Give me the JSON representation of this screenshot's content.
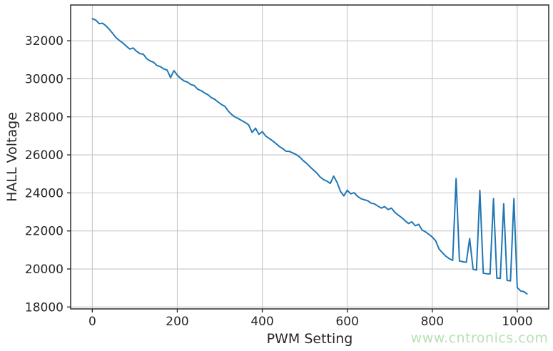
{
  "figure": {
    "background": "#ffffff"
  },
  "watermark": {
    "text": "www.cntronics.com",
    "color": "#b6e2b4"
  },
  "chart_data": {
    "type": "line",
    "title": "",
    "xlabel": "PWM Setting",
    "ylabel": "HALL Voltage",
    "xlim": [
      -51,
      1074
    ],
    "ylim": [
      17900,
      33880
    ],
    "xticks": [
      0,
      200,
      400,
      600,
      800,
      1000
    ],
    "yticks": [
      18000,
      20000,
      22000,
      24000,
      26000,
      28000,
      30000,
      32000
    ],
    "grid": true,
    "legend": "none",
    "line_color": "#1f77b4",
    "grid_color": "#c6c6c6",
    "spine_color": "#2b2b2b",
    "text_color": "#262626",
    "series": [
      {
        "name": "HALL Voltage",
        "x": [
          0,
          8,
          16,
          24,
          32,
          40,
          48,
          56,
          64,
          72,
          80,
          88,
          96,
          104,
          112,
          120,
          128,
          136,
          144,
          152,
          160,
          168,
          176,
          184,
          192,
          200,
          208,
          216,
          224,
          232,
          240,
          248,
          256,
          264,
          272,
          280,
          288,
          296,
          304,
          312,
          320,
          328,
          336,
          344,
          352,
          360,
          368,
          376,
          384,
          392,
          400,
          408,
          416,
          424,
          432,
          440,
          448,
          456,
          464,
          472,
          480,
          488,
          496,
          504,
          512,
          520,
          528,
          536,
          544,
          552,
          560,
          568,
          576,
          584,
          592,
          600,
          608,
          616,
          624,
          632,
          640,
          648,
          656,
          664,
          672,
          680,
          688,
          696,
          704,
          712,
          720,
          728,
          736,
          744,
          752,
          760,
          768,
          776,
          784,
          792,
          800,
          808,
          816,
          824,
          832,
          840,
          848,
          856,
          864,
          872,
          880,
          888,
          896,
          904,
          912,
          920,
          928,
          936,
          944,
          952,
          960,
          968,
          976,
          984,
          992,
          1000,
          1008,
          1016,
          1023
        ],
        "y": [
          33156,
          33090,
          32900,
          32920,
          32790,
          32600,
          32380,
          32160,
          32010,
          31880,
          31720,
          31560,
          31620,
          31450,
          31320,
          31290,
          31060,
          30940,
          30870,
          30700,
          30640,
          30520,
          30460,
          30060,
          30430,
          30190,
          30020,
          29890,
          29820,
          29700,
          29640,
          29450,
          29380,
          29260,
          29160,
          29010,
          28920,
          28780,
          28650,
          28550,
          28300,
          28120,
          27990,
          27900,
          27800,
          27700,
          27570,
          27180,
          27400,
          27080,
          27220,
          26990,
          26870,
          26740,
          26600,
          26440,
          26330,
          26190,
          26180,
          26100,
          26010,
          25890,
          25700,
          25560,
          25380,
          25210,
          25050,
          24840,
          24700,
          24620,
          24500,
          24880,
          24550,
          24080,
          23840,
          24140,
          23950,
          24010,
          23820,
          23700,
          23640,
          23590,
          23460,
          23420,
          23310,
          23200,
          23280,
          23120,
          23200,
          22980,
          22830,
          22700,
          22540,
          22390,
          22480,
          22270,
          22350,
          22050,
          21950,
          21820,
          21680,
          21480,
          21050,
          20850,
          20670,
          20540,
          20450,
          24750,
          20420,
          20380,
          20350,
          21600,
          19990,
          19940,
          24135,
          19780,
          19750,
          19740,
          23700,
          19520,
          19500,
          23430,
          19400,
          19370,
          23700,
          19020,
          18840,
          18800,
          18690
        ]
      }
    ],
    "annotations": {
      "spike_peaks": [
        {
          "x": 856,
          "y": 24750
        },
        {
          "x": 888,
          "y": 21600
        },
        {
          "x": 912,
          "y": 24135
        },
        {
          "x": 944,
          "y": 23700
        },
        {
          "x": 968,
          "y": 23430
        },
        {
          "x": 992,
          "y": 23700
        }
      ]
    }
  }
}
